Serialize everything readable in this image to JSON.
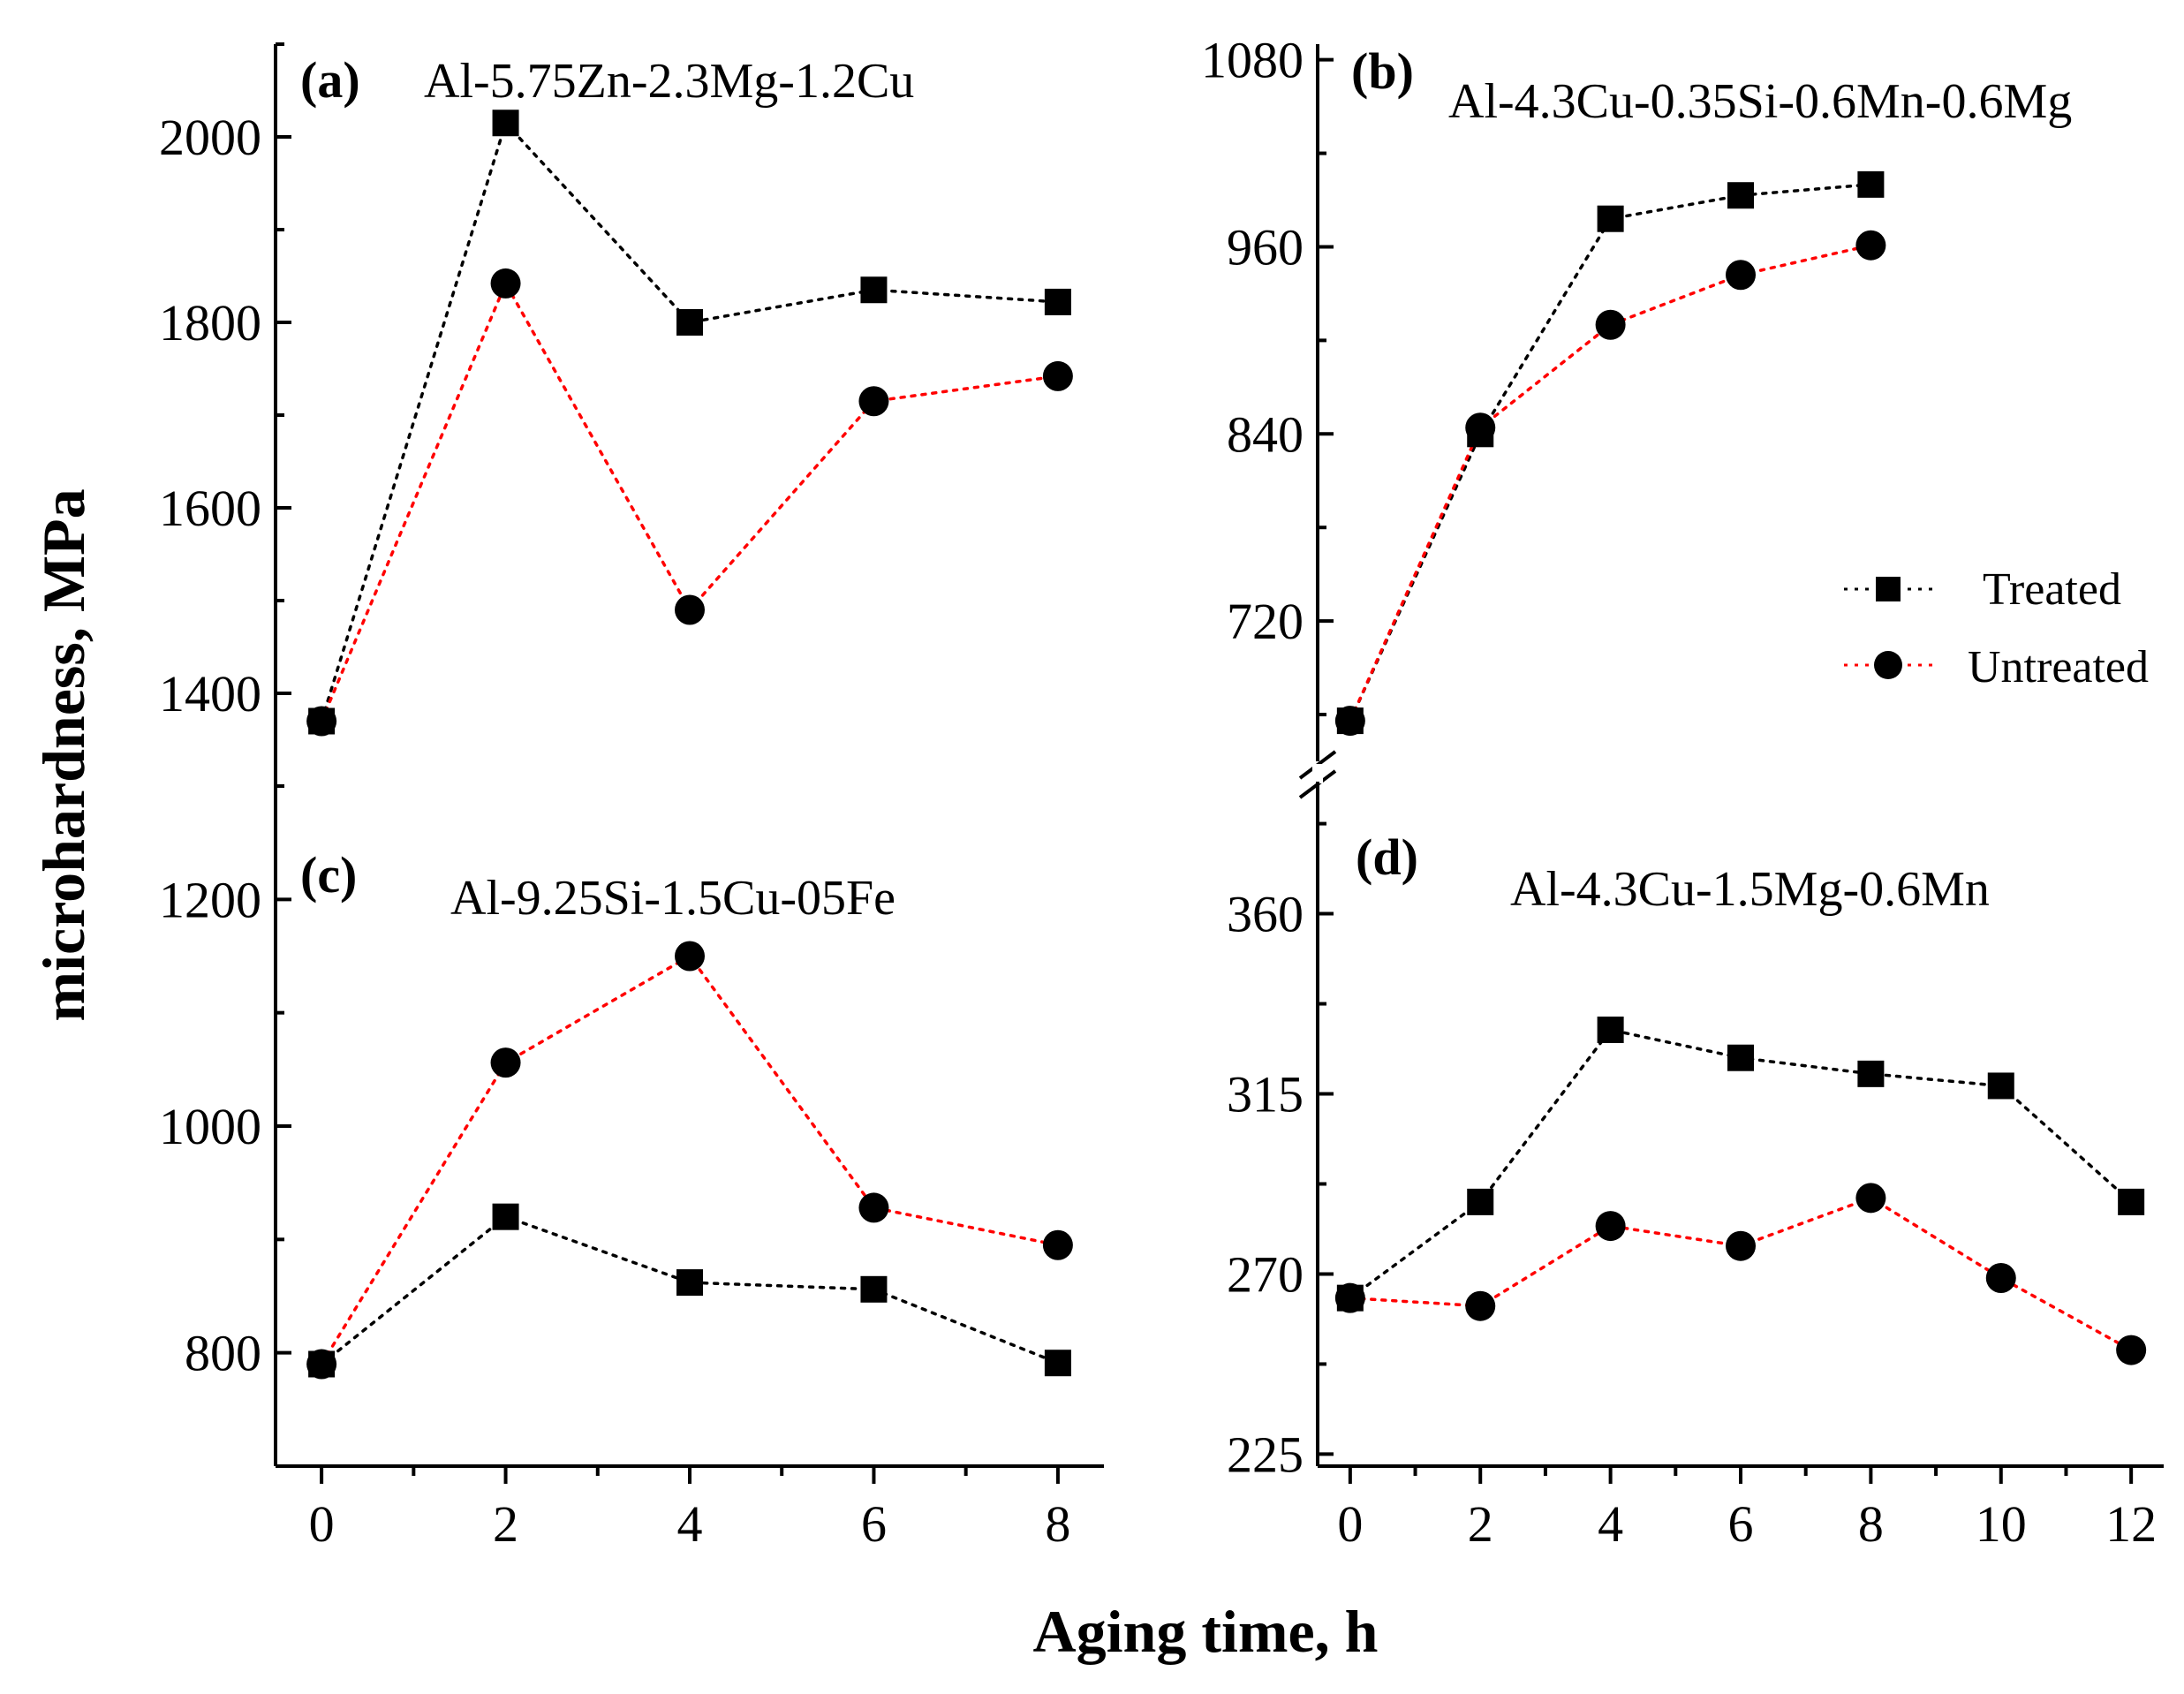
{
  "figure": {
    "ylabel": "microhardness, MPa",
    "xlabel": "Aging time, h",
    "legend": {
      "treated": "Treated",
      "untreated": "Untreated",
      "position": "right-middle"
    }
  },
  "colors": {
    "treated": "#000000",
    "untreated": "#ff0000",
    "axis": "#000000"
  },
  "chart_data": [
    {
      "id": "a",
      "type": "line",
      "label": "(a)",
      "title": "Al-5.75Zn-2.3Mg-1.2Cu",
      "x": [
        0,
        2,
        4,
        6,
        8
      ],
      "xlim": [
        -0.5,
        8.5
      ],
      "xticks": [
        0,
        2,
        4,
        6,
        8
      ],
      "ylim": [
        1300,
        2100
      ],
      "yticks": [
        1400,
        1600,
        1800,
        2000
      ],
      "series": [
        {
          "name": "Treated",
          "marker": "square",
          "values": [
            1370,
            2015,
            1800,
            1835,
            1822
          ]
        },
        {
          "name": "Untreated",
          "marker": "circle",
          "values": [
            1370,
            1842,
            1490,
            1715,
            1742
          ]
        }
      ]
    },
    {
      "id": "b",
      "type": "line",
      "label": "(b)",
      "title": "Al-4.3Cu-0.35Si-0.6Mn-0.6Mg",
      "x": [
        0,
        2,
        4,
        6,
        8
      ],
      "xlim": [
        -0.5,
        12.5
      ],
      "xticks": [
        0,
        2,
        4,
        6,
        8,
        10,
        12
      ],
      "ylim": [
        630,
        1090
      ],
      "yticks": [
        720,
        840,
        960,
        1080
      ],
      "axis_break": true,
      "series": [
        {
          "name": "Treated",
          "marker": "square",
          "values": [
            656,
            840,
            978,
            993,
            1000
          ]
        },
        {
          "name": "Untreated",
          "marker": "circle",
          "values": [
            656,
            844,
            910,
            942,
            961
          ]
        }
      ]
    },
    {
      "id": "c",
      "type": "line",
      "label": "(c)",
      "title": "Al-9.25Si-1.5Cu-05Fe",
      "x": [
        0,
        2,
        4,
        6,
        8
      ],
      "xlim": [
        -0.5,
        8.5
      ],
      "xticks": [
        0,
        2,
        4,
        6,
        8
      ],
      "ylim": [
        700,
        1300
      ],
      "yticks": [
        800,
        1000,
        1200
      ],
      "series": [
        {
          "name": "Treated",
          "marker": "square",
          "values": [
            790,
            920,
            862,
            856,
            791
          ]
        },
        {
          "name": "Untreated",
          "marker": "circle",
          "values": [
            790,
            1056,
            1150,
            928,
            895
          ]
        }
      ]
    },
    {
      "id": "d",
      "type": "line",
      "label": "(d)",
      "title": "Al-4.3Cu-1.5Mg-0.6Mn",
      "x": [
        0,
        2,
        4,
        6,
        8,
        10,
        12
      ],
      "xlim": [
        -0.5,
        12.5
      ],
      "xticks": [
        0,
        2,
        4,
        6,
        8,
        10,
        12
      ],
      "ylim": [
        222,
        393
      ],
      "yticks": [
        225,
        270,
        315,
        360
      ],
      "series": [
        {
          "name": "Treated",
          "marker": "square",
          "values": [
            264,
            288,
            331,
            324,
            320,
            317,
            288
          ]
        },
        {
          "name": "Untreated",
          "marker": "circle",
          "values": [
            264,
            262,
            282,
            277,
            289,
            269,
            251
          ]
        }
      ]
    }
  ]
}
